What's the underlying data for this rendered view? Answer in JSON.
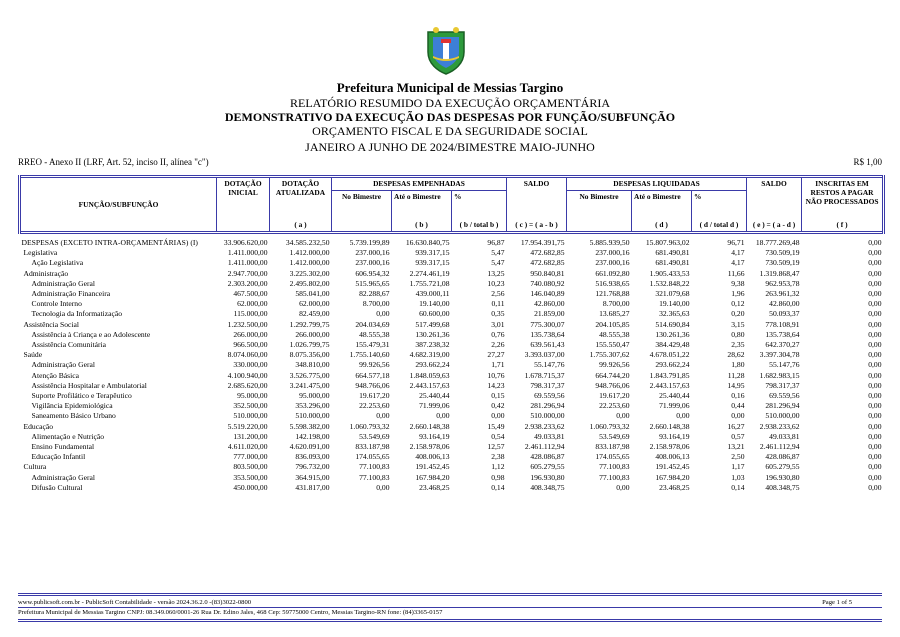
{
  "header": {
    "title": "Prefeitura Municipal de Messias Targino",
    "report": "RELATÓRIO RESUMIDO DA EXECUÇÃO ORÇAMENTÁRIA",
    "statement": "DEMONSTRATIVO DA EXECUÇÃO DAS DESPESAS POR FUNÇÃO/SUBFUNÇÃO",
    "budget": "ORÇAMENTO FISCAL E DA SEGURIDADE SOCIAL",
    "period": "JANEIRO A JUNHO DE 2024/BIMESTRE MAIO-JUNHO",
    "annex": "RREO - Anexo II (LRF, Art. 52, inciso II, alínea \"c\")",
    "unit": "R$ 1,00"
  },
  "table": {
    "columns": {
      "function": "FUNÇÃO/SUBFUNÇÃO",
      "initial": "DOTAÇÃO INICIAL",
      "updated": "DOTAÇÃO ATUALIZADA",
      "updated_ref": "( a )",
      "committed": "DESPESAS EMPENHADAS",
      "committed_period": "No Bimestre",
      "committed_todate": "Até o Bimestre",
      "committed_ref": "( b )",
      "committed_pct": "%",
      "committed_pct_ref": "( b / total b )",
      "balance1": "SALDO",
      "balance1_ref": "( c ) = ( a - b )",
      "settled": "DESPESAS LIQUIDADAS",
      "settled_period": "No Bimestre",
      "settled_todate": "Até o Bimestre",
      "settled_ref": "( d )",
      "settled_pct": "%",
      "settled_pct_ref": "( d / total d )",
      "balance2": "SALDO",
      "balance2_ref": "( e ) = ( a - d )",
      "unprocessed": "INSCRITAS EM RESTOS A PAGAR NÃO PROCESSADOS",
      "unprocessed_ref": "( f )"
    },
    "total": {
      "label": "DESPESAS (EXCETO INTRA-ORÇAMENTÁRIAS) (I)",
      "values": [
        "33.906.620,00",
        "34.585.232,50",
        "5.739.199,89",
        "16.630.840,75",
        "96,87",
        "17.954.391,75",
        "5.885.939,50",
        "15.807.963,02",
        "96,71",
        "18.777.269,48",
        "0,00"
      ]
    },
    "functions": [
      {
        "label": "Legislativa",
        "values": [
          "1.411.000,00",
          "1.412.000,00",
          "237.000,16",
          "939.317,15",
          "5,47",
          "472.682,85",
          "237.000,16",
          "681.490,81",
          "4,17",
          "730.509,19",
          "0,00"
        ],
        "subfunctions": [
          {
            "label": "Ação Legislativa",
            "values": [
              "1.411.000,00",
              "1.412.000,00",
              "237.000,16",
              "939.317,15",
              "5,47",
              "472.682,85",
              "237.000,16",
              "681.490,81",
              "4,17",
              "730.509,19",
              "0,00"
            ]
          }
        ]
      },
      {
        "label": "Administração",
        "values": [
          "2.947.700,00",
          "3.225.302,00",
          "606.954,32",
          "2.274.461,19",
          "13,25",
          "950.840,81",
          "661.092,80",
          "1.905.433,53",
          "11,66",
          "1.319.868,47",
          "0,00"
        ],
        "subfunctions": [
          {
            "label": "Administração Geral",
            "values": [
              "2.303.200,00",
              "2.495.802,00",
              "515.965,65",
              "1.755.721,08",
              "10,23",
              "740.080,92",
              "516.938,65",
              "1.532.848,22",
              "9,38",
              "962.953,78",
              "0,00"
            ]
          },
          {
            "label": "Administração Financeira",
            "values": [
              "467.500,00",
              "585.041,00",
              "82.288,67",
              "439.000,11",
              "2,56",
              "146.040,89",
              "121.768,88",
              "321.079,68",
              "1,96",
              "263.961,32",
              "0,00"
            ]
          },
          {
            "label": "Controle Interno",
            "values": [
              "62.000,00",
              "62.000,00",
              "8.700,00",
              "19.140,00",
              "0,11",
              "42.860,00",
              "8.700,00",
              "19.140,00",
              "0,12",
              "42.860,00",
              "0,00"
            ]
          },
          {
            "label": "Tecnologia da Informatização",
            "values": [
              "115.000,00",
              "82.459,00",
              "0,00",
              "60.600,00",
              "0,35",
              "21.859,00",
              "13.685,27",
              "32.365,63",
              "0,20",
              "50.093,37",
              "0,00"
            ]
          }
        ]
      },
      {
        "label": "Assistência Social",
        "values": [
          "1.232.500,00",
          "1.292.799,75",
          "204.034,69",
          "517.499,68",
          "3,01",
          "775.300,07",
          "204.105,85",
          "514.690,84",
          "3,15",
          "778.108,91",
          "0,00"
        ],
        "subfunctions": [
          {
            "label": "Assistência à Criança e ao Adolescente",
            "values": [
              "266.000,00",
              "266.000,00",
              "48.555,38",
              "130.261,36",
              "0,76",
              "135.738,64",
              "48.555,38",
              "130.261,36",
              "0,80",
              "135.738,64",
              "0,00"
            ]
          },
          {
            "label": "Assistência Comunitária",
            "values": [
              "966.500,00",
              "1.026.799,75",
              "155.479,31",
              "387.238,32",
              "2,26",
              "639.561,43",
              "155.550,47",
              "384.429,48",
              "2,35",
              "642.370,27",
              "0,00"
            ]
          }
        ]
      },
      {
        "label": "Saúde",
        "values": [
          "8.074.060,00",
          "8.075.356,00",
          "1.755.140,60",
          "4.682.319,00",
          "27,27",
          "3.393.037,00",
          "1.755.307,62",
          "4.678.051,22",
          "28,62",
          "3.397.304,78",
          "0,00"
        ],
        "subfunctions": [
          {
            "label": "Administração Geral",
            "values": [
              "330.000,00",
              "348.810,00",
              "99.926,56",
              "293.662,24",
              "1,71",
              "55.147,76",
              "99.926,56",
              "293.662,24",
              "1,80",
              "55.147,76",
              "0,00"
            ]
          },
          {
            "label": "Atenção Básica",
            "values": [
              "4.100.940,00",
              "3.526.775,00",
              "664.577,18",
              "1.848.059,63",
              "10,76",
              "1.678.715,37",
              "664.744,20",
              "1.843.791,85",
              "11,28",
              "1.682.983,15",
              "0,00"
            ]
          },
          {
            "label": "Assistência Hospitalar e Ambulatorial",
            "values": [
              "2.685.620,00",
              "3.241.475,00",
              "948.766,06",
              "2.443.157,63",
              "14,23",
              "798.317,37",
              "948.766,06",
              "2.443.157,63",
              "14,95",
              "798.317,37",
              "0,00"
            ]
          },
          {
            "label": "Suporte Profilático e Terapêutico",
            "values": [
              "95.000,00",
              "95.000,00",
              "19.617,20",
              "25.440,44",
              "0,15",
              "69.559,56",
              "19.617,20",
              "25.440,44",
              "0,16",
              "69.559,56",
              "0,00"
            ]
          },
          {
            "label": "Vigilância Epidemiológica",
            "values": [
              "352.500,00",
              "353.296,00",
              "22.253,60",
              "71.999,06",
              "0,42",
              "281.296,94",
              "22.253,60",
              "71.999,06",
              "0,44",
              "281.296,94",
              "0,00"
            ]
          },
          {
            "label": "Saneamento Básico Urbano",
            "values": [
              "510.000,00",
              "510.000,00",
              "0,00",
              "0,00",
              "0,00",
              "510.000,00",
              "0,00",
              "0,00",
              "0,00",
              "510.000,00",
              "0,00"
            ]
          }
        ]
      },
      {
        "label": "Educação",
        "values": [
          "5.519.220,00",
          "5.598.382,00",
          "1.060.793,32",
          "2.660.148,38",
          "15,49",
          "2.938.233,62",
          "1.060.793,32",
          "2.660.148,38",
          "16,27",
          "2.938.233,62",
          "0,00"
        ],
        "subfunctions": [
          {
            "label": "Alimentação e Nutrição",
            "values": [
              "131.200,00",
              "142.198,00",
              "53.549,69",
              "93.164,19",
              "0,54",
              "49.033,81",
              "53.549,69",
              "93.164,19",
              "0,57",
              "49.033,81",
              "0,00"
            ]
          },
          {
            "label": "Ensino Fundamental",
            "values": [
              "4.611.020,00",
              "4.620.091,00",
              "833.187,98",
              "2.158.978,06",
              "12,57",
              "2.461.112,94",
              "833.187,98",
              "2.158.978,06",
              "13,21",
              "2.461.112,94",
              "0,00"
            ]
          },
          {
            "label": "Educação Infantil",
            "values": [
              "777.000,00",
              "836.093,00",
              "174.055,65",
              "408.006,13",
              "2,38",
              "428.086,87",
              "174.055,65",
              "408.006,13",
              "2,50",
              "428.086,87",
              "0,00"
            ]
          }
        ]
      },
      {
        "label": "Cultura",
        "values": [
          "803.500,00",
          "796.732,00",
          "77.100,83",
          "191.452,45",
          "1,12",
          "605.279,55",
          "77.100,83",
          "191.452,45",
          "1,17",
          "605.279,55",
          "0,00"
        ],
        "subfunctions": [
          {
            "label": "Administração Geral",
            "values": [
              "353.500,00",
              "364.915,00",
              "77.100,83",
              "167.984,20",
              "0,98",
              "196.930,80",
              "77.100,83",
              "167.984,20",
              "1,03",
              "196.930,80",
              "0,00"
            ]
          },
          {
            "label": "Difusão Cultural",
            "values": [
              "450.000,00",
              "431.817,00",
              "0,00",
              "23.468,25",
              "0,14",
              "408.348,75",
              "0,00",
              "23.468,25",
              "0,14",
              "408.348,75",
              "0,00"
            ]
          }
        ]
      }
    ]
  },
  "footer": {
    "software": "www.publicsoft.com.br - PublicSoft Contabilidade - versão 2024.36.2.0 -(83)3022-0800",
    "page": "Page 1 of 5",
    "address": "Prefeitura Municipal de Messias Targino CNPJ: 08.349.060/0001-26 Rua Dr. Edino Jales, 468 Cep: 59775000 Centro, Messias Targino-RN fone: (84)3365-0157"
  }
}
